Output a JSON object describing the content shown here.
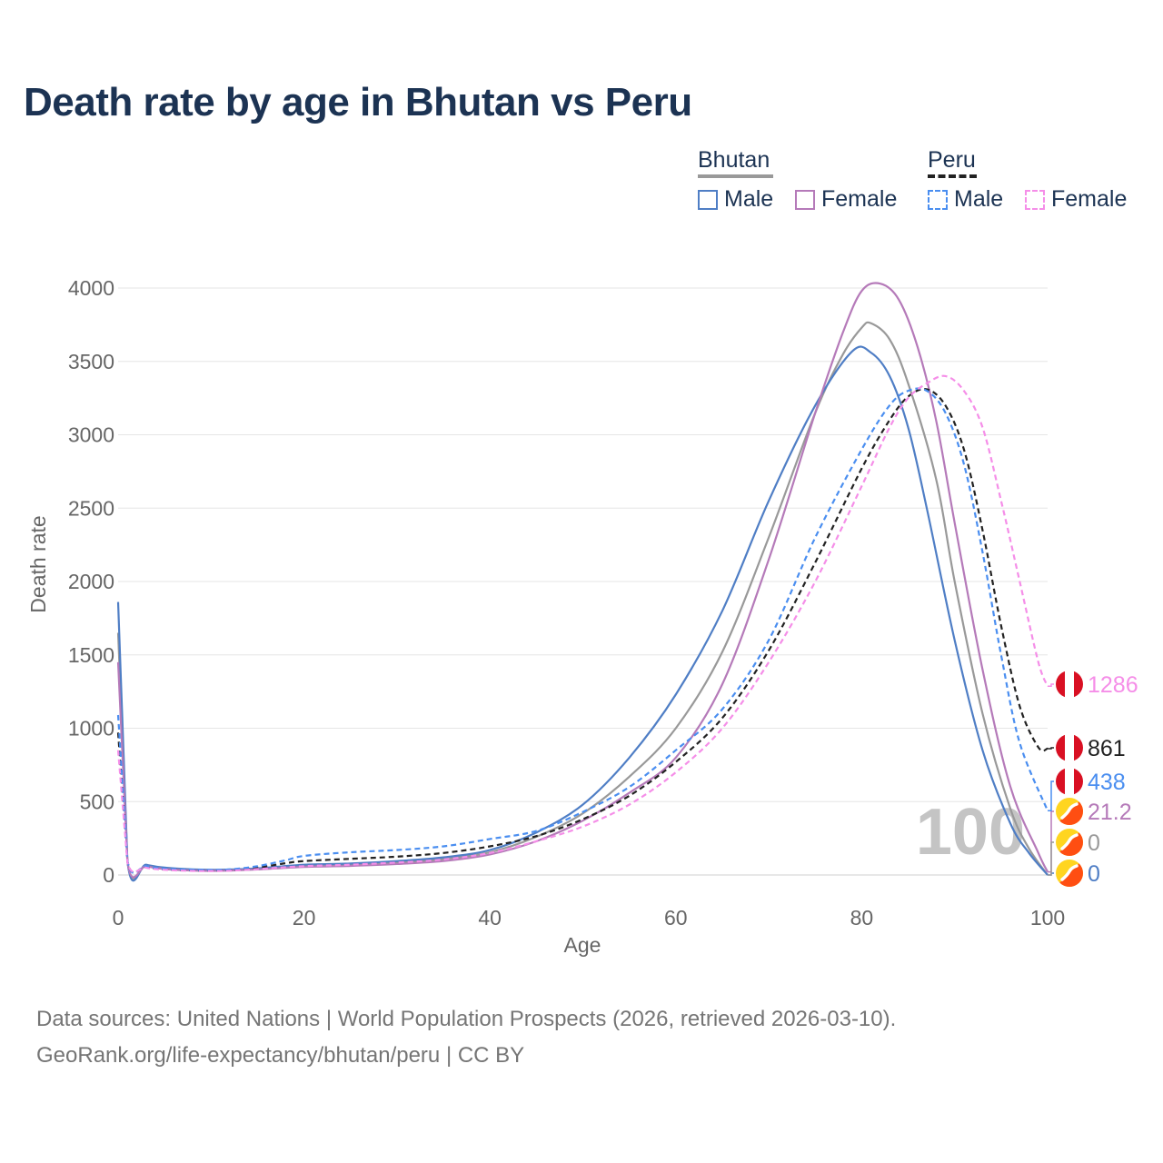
{
  "title": "Death rate by age in Bhutan vs Peru",
  "legend": {
    "groups": [
      {
        "title": "Bhutan",
        "color": "#999999",
        "dash": "solid",
        "items": [
          {
            "label": "Male",
            "color": "#4f7ec5"
          },
          {
            "label": "Female",
            "color": "#b57ab9"
          }
        ]
      },
      {
        "title": "Peru",
        "color": "#222222",
        "dash": "dashed",
        "items": [
          {
            "label": "Male",
            "color": "#4a8ef0"
          },
          {
            "label": "Female",
            "color": "#f58ee8"
          }
        ]
      }
    ]
  },
  "age_watermark": "100",
  "footer": {
    "line1": "Data sources: United Nations | World Population Prospects (2026, retrieved 2026-03-10).",
    "line2": "GeoRank.org/life-expectancy/bhutan/peru | CC BY"
  },
  "chart_data": {
    "type": "line",
    "xlabel": "Age",
    "ylabel": "Death rate",
    "xlim": [
      0,
      100
    ],
    "ylim": [
      0,
      4000
    ],
    "xticks": [
      0,
      20,
      40,
      60,
      80,
      100
    ],
    "yticks": [
      0,
      500,
      1000,
      1500,
      2000,
      2500,
      3000,
      3500,
      4000
    ],
    "grid": true,
    "series": [
      {
        "name": "Bhutan Male",
        "color": "#4f7ec5",
        "dash": "solid",
        "end_label": "0",
        "flag": "bhutan",
        "points": [
          [
            0,
            1860
          ],
          [
            1,
            100
          ],
          [
            3,
            70
          ],
          [
            5,
            50
          ],
          [
            8,
            38
          ],
          [
            10,
            35
          ],
          [
            12,
            37
          ],
          [
            15,
            45
          ],
          [
            20,
            70
          ],
          [
            25,
            78
          ],
          [
            30,
            95
          ],
          [
            35,
            120
          ],
          [
            40,
            170
          ],
          [
            45,
            290
          ],
          [
            50,
            480
          ],
          [
            55,
            800
          ],
          [
            60,
            1230
          ],
          [
            65,
            1800
          ],
          [
            70,
            2550
          ],
          [
            75,
            3200
          ],
          [
            79,
            3570
          ],
          [
            81,
            3560
          ],
          [
            83,
            3400
          ],
          [
            85,
            3050
          ],
          [
            87,
            2500
          ],
          [
            90,
            1600
          ],
          [
            93,
            850
          ],
          [
            96,
            350
          ],
          [
            98,
            150
          ],
          [
            100,
            0
          ]
        ]
      },
      {
        "name": "Bhutan Female",
        "color": "#b57ab9",
        "dash": "solid",
        "end_label": "21.2",
        "flag": "bhutan",
        "points": [
          [
            0,
            1450
          ],
          [
            1,
            95
          ],
          [
            3,
            60
          ],
          [
            5,
            40
          ],
          [
            8,
            30
          ],
          [
            10,
            28
          ],
          [
            12,
            30
          ],
          [
            15,
            38
          ],
          [
            20,
            55
          ],
          [
            25,
            62
          ],
          [
            30,
            75
          ],
          [
            35,
            95
          ],
          [
            40,
            140
          ],
          [
            45,
            230
          ],
          [
            50,
            370
          ],
          [
            55,
            560
          ],
          [
            60,
            800
          ],
          [
            65,
            1300
          ],
          [
            70,
            2150
          ],
          [
            75,
            3150
          ],
          [
            78,
            3700
          ],
          [
            80,
            3980
          ],
          [
            82,
            4030
          ],
          [
            84,
            3920
          ],
          [
            86,
            3600
          ],
          [
            88,
            3100
          ],
          [
            90,
            2400
          ],
          [
            93,
            1400
          ],
          [
            96,
            600
          ],
          [
            99,
            150
          ],
          [
            100,
            21.2
          ]
        ]
      },
      {
        "name": "Bhutan Total",
        "color": "#999999",
        "dash": "solid",
        "end_label": "0",
        "flag": "bhutan",
        "points": [
          [
            0,
            1650
          ],
          [
            1,
            98
          ],
          [
            3,
            65
          ],
          [
            5,
            45
          ],
          [
            8,
            34
          ],
          [
            10,
            32
          ],
          [
            12,
            33
          ],
          [
            15,
            42
          ],
          [
            20,
            62
          ],
          [
            25,
            70
          ],
          [
            30,
            85
          ],
          [
            35,
            108
          ],
          [
            40,
            155
          ],
          [
            45,
            260
          ],
          [
            50,
            420
          ],
          [
            55,
            670
          ],
          [
            60,
            1000
          ],
          [
            65,
            1520
          ],
          [
            70,
            2300
          ],
          [
            75,
            3150
          ],
          [
            78,
            3550
          ],
          [
            80,
            3730
          ],
          [
            81,
            3760
          ],
          [
            83,
            3650
          ],
          [
            85,
            3350
          ],
          [
            88,
            2700
          ],
          [
            90,
            2000
          ],
          [
            93,
            1100
          ],
          [
            96,
            450
          ],
          [
            98,
            180
          ],
          [
            100,
            0
          ]
        ]
      },
      {
        "name": "Peru Male",
        "color": "#4a8ef0",
        "dash": "dashed",
        "end_label": "438",
        "flag": "peru",
        "points": [
          [
            0,
            1090
          ],
          [
            1,
            100
          ],
          [
            3,
            60
          ],
          [
            5,
            42
          ],
          [
            8,
            35
          ],
          [
            10,
            35
          ],
          [
            12,
            38
          ],
          [
            15,
            60
          ],
          [
            18,
            100
          ],
          [
            20,
            130
          ],
          [
            25,
            155
          ],
          [
            30,
            170
          ],
          [
            35,
            195
          ],
          [
            40,
            245
          ],
          [
            45,
            300
          ],
          [
            50,
            430
          ],
          [
            55,
            600
          ],
          [
            60,
            850
          ],
          [
            65,
            1130
          ],
          [
            70,
            1600
          ],
          [
            75,
            2300
          ],
          [
            80,
            2900
          ],
          [
            83,
            3200
          ],
          [
            85,
            3300
          ],
          [
            87,
            3300
          ],
          [
            89,
            3150
          ],
          [
            91,
            2800
          ],
          [
            93,
            2200
          ],
          [
            95,
            1500
          ],
          [
            97,
            900
          ],
          [
            100,
            438
          ]
        ]
      },
      {
        "name": "Peru Female",
        "color": "#f58ee8",
        "dash": "dashed",
        "end_label": "1286",
        "flag": "peru",
        "points": [
          [
            0,
            850
          ],
          [
            1,
            90
          ],
          [
            3,
            50
          ],
          [
            5,
            35
          ],
          [
            8,
            28
          ],
          [
            10,
            27
          ],
          [
            12,
            29
          ],
          [
            15,
            40
          ],
          [
            20,
            60
          ],
          [
            25,
            70
          ],
          [
            30,
            85
          ],
          [
            35,
            105
          ],
          [
            40,
            150
          ],
          [
            45,
            230
          ],
          [
            50,
            330
          ],
          [
            55,
            480
          ],
          [
            60,
            700
          ],
          [
            65,
            1000
          ],
          [
            70,
            1450
          ],
          [
            75,
            2000
          ],
          [
            80,
            2650
          ],
          [
            83,
            3050
          ],
          [
            85,
            3250
          ],
          [
            87,
            3350
          ],
          [
            89,
            3400
          ],
          [
            91,
            3300
          ],
          [
            93,
            3050
          ],
          [
            95,
            2550
          ],
          [
            97,
            2000
          ],
          [
            99,
            1450
          ],
          [
            100,
            1286
          ]
        ]
      },
      {
        "name": "Peru Total",
        "color": "#222222",
        "dash": "dashed",
        "end_label": "861",
        "flag": "peru",
        "points": [
          [
            0,
            970
          ],
          [
            1,
            95
          ],
          [
            3,
            55
          ],
          [
            5,
            38
          ],
          [
            8,
            31
          ],
          [
            10,
            31
          ],
          [
            12,
            33
          ],
          [
            15,
            50
          ],
          [
            18,
            80
          ],
          [
            20,
            95
          ],
          [
            25,
            110
          ],
          [
            30,
            125
          ],
          [
            35,
            150
          ],
          [
            40,
            195
          ],
          [
            45,
            265
          ],
          [
            50,
            380
          ],
          [
            55,
            540
          ],
          [
            60,
            770
          ],
          [
            65,
            1070
          ],
          [
            70,
            1530
          ],
          [
            75,
            2130
          ],
          [
            80,
            2770
          ],
          [
            83,
            3100
          ],
          [
            85,
            3260
          ],
          [
            87,
            3310
          ],
          [
            89,
            3200
          ],
          [
            91,
            2900
          ],
          [
            93,
            2350
          ],
          [
            95,
            1700
          ],
          [
            97,
            1150
          ],
          [
            99,
            870
          ],
          [
            100,
            861
          ]
        ]
      }
    ]
  }
}
